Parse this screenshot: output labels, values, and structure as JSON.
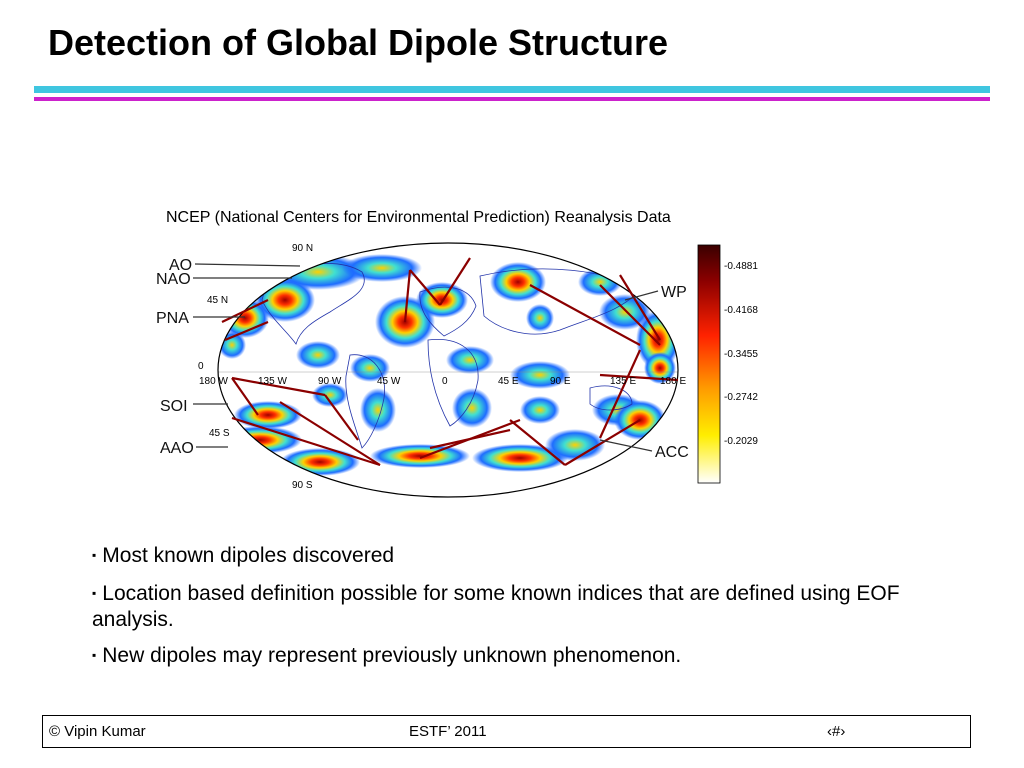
{
  "slide": {
    "title": "Detection of Global Dipole Structure"
  },
  "colors": {
    "rule_top": "#3fc6e0",
    "rule_bottom": "#cc22cc",
    "dipole_line": "#8b0000",
    "label_line": "#333333"
  },
  "figure": {
    "caption": "NCEP (National Centers for Environmental Prediction) Reanalysis Data",
    "lat_labels": {
      "n90": "90 N",
      "n45": "45 N",
      "eq": "0",
      "s45": "45 S",
      "s90": "90 S"
    },
    "lon_labels": [
      "180 W",
      "135 W",
      "90 W",
      "45 W",
      "0",
      "45 E",
      "90 E",
      "135 E",
      "180 E"
    ],
    "index_labels": {
      "ao": "AO",
      "nao": "NAO",
      "pna": "PNA",
      "soi": "SOI",
      "aao": "AAO",
      "wp": "WP",
      "acc": "ACC"
    },
    "colorbar": {
      "ticks": [
        "-0.4881",
        "-0.4168",
        "-0.3455",
        "-0.2742",
        "-0.2029"
      ],
      "colormap": "hot-to-cold (white, yellow, orange, red, dark red)"
    }
  },
  "bullets": [
    "Most known dipoles discovered",
    "Location based definition possible for some known indices that are defined using EOF analysis.",
    "New dipoles may represent previously unknown phenomenon."
  ],
  "bullet_marker": "▪",
  "footer": {
    "author": "© Vipin Kumar",
    "event": "ESTF’ 2011",
    "page": "‹#›"
  }
}
